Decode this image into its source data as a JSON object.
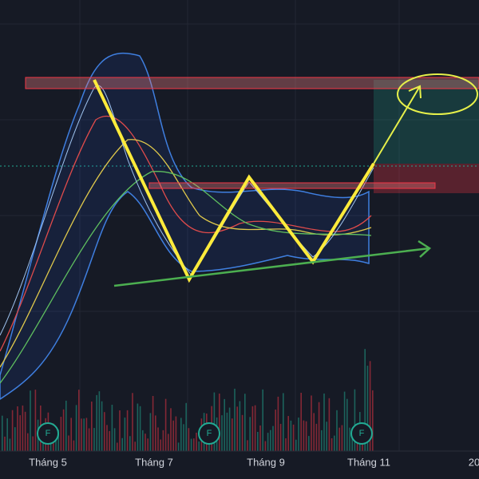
{
  "x_axis": {
    "labels": [
      "Tháng 5",
      "Tháng 7",
      "Tháng 9",
      "Tháng 11",
      "20"
    ]
  },
  "markers": [
    "F",
    "F",
    "F"
  ]
}
